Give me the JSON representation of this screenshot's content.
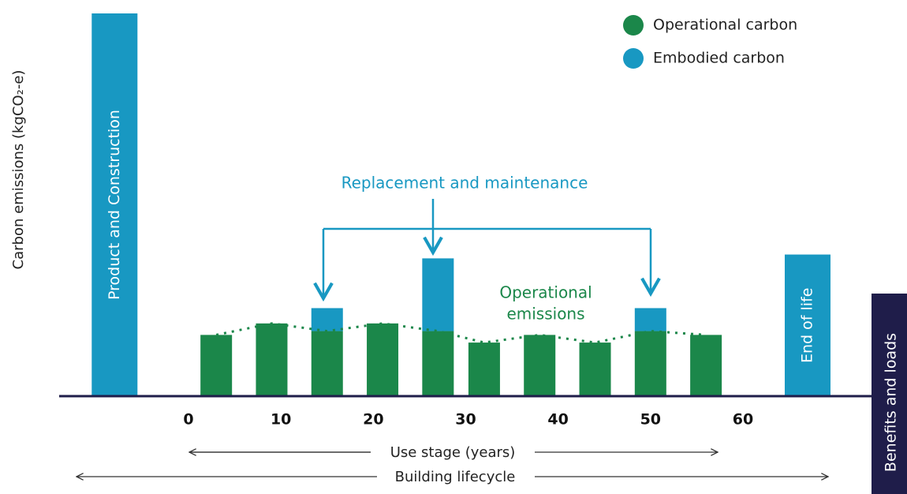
{
  "chart_data": {
    "type": "bar",
    "ylabel": "Carbon emissions (kgCO₂-e)",
    "x": [
      3,
      9,
      15,
      21,
      27,
      32,
      38,
      44,
      50,
      56
    ],
    "series": [
      {
        "name": "Operational carbon",
        "color": "#1b874a",
        "values": [
          16,
          19,
          17,
          19,
          17,
          14,
          16,
          14,
          17,
          16
        ]
      },
      {
        "name": "Embodied carbon",
        "color": "#1898c2",
        "values": [
          null,
          null,
          6,
          null,
          19,
          null,
          null,
          null,
          6,
          null
        ]
      }
    ],
    "stage_bars": [
      {
        "label": "Product and Construction",
        "x": -8,
        "value": 100
      },
      {
        "label": "End of life",
        "x": 67,
        "value": 37
      }
    ],
    "xlim": [
      -14,
      74
    ],
    "xticks": [
      0,
      10,
      20,
      30,
      40,
      50,
      60
    ],
    "ylim": [
      0,
      100
    ],
    "annotations": {
      "replacement": "Replacement and maintenance",
      "operational": [
        "Operational",
        "emissions"
      ],
      "use_stage": "Use stage (years)",
      "lifecycle": "Building lifecycle",
      "benefits": "Benefits and loads"
    }
  }
}
